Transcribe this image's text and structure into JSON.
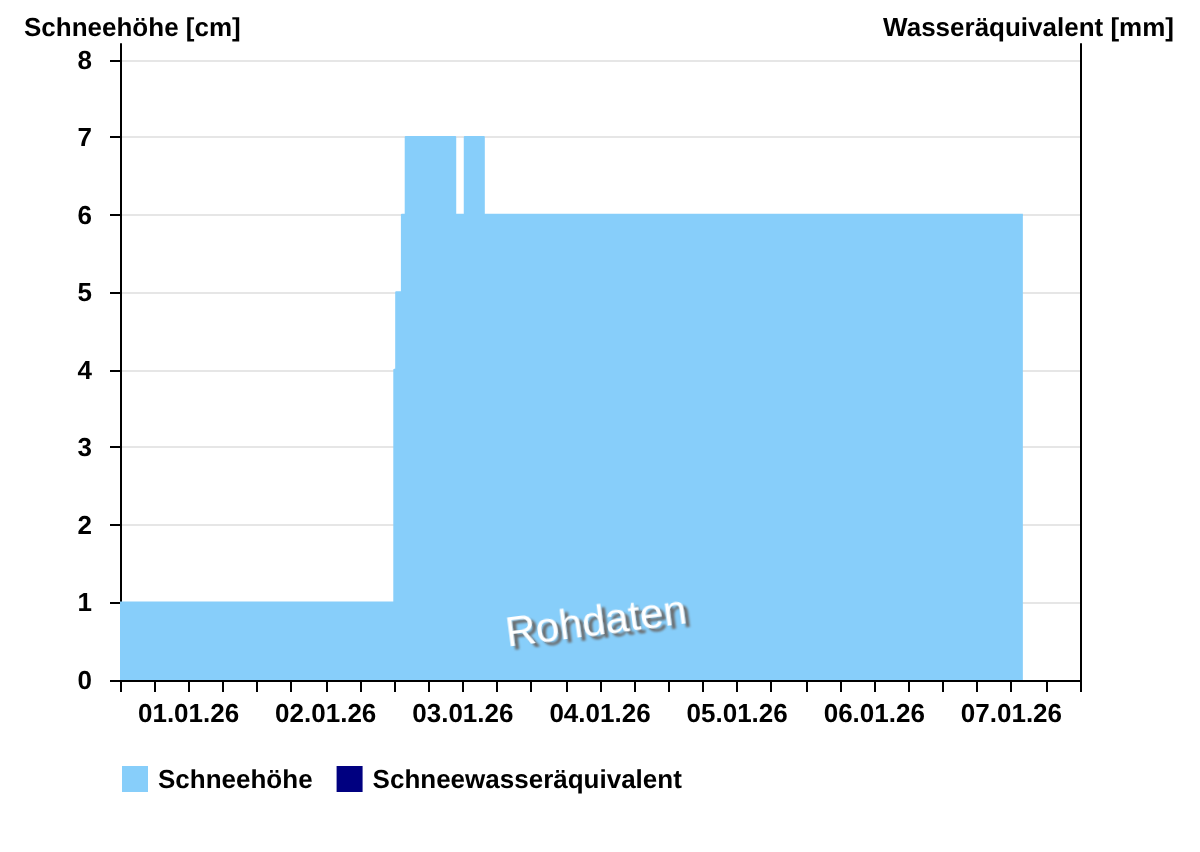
{
  "chart_data": {
    "type": "area",
    "ylabel": "Schneehöhe [cm]",
    "y2label": "Wasseräquivalent [mm]",
    "annotations": [
      "Rohdaten"
    ],
    "x": [
      "--01-01T00:00",
      "--01-03T00:00",
      "--01-03T00:00",
      "--01-03T00:20",
      "--01-03T00:20",
      "--01-03T01:20",
      "--01-03T01:20",
      "--01-03T02:00",
      "--01-03T02:00",
      "--01-03T10:40",
      "--01-03T10:40",
      "--01-03T12:20",
      "--01-03T12:20",
      "--01-03T15:40",
      "--01-03T15:40",
      "--01-07T14:00"
    ],
    "series": [
      {
        "name": "Schneehöhe",
        "color": "#87cefa",
        "values": [
          1,
          1,
          4,
          4,
          5,
          5,
          6,
          6,
          7,
          7,
          6,
          6,
          7,
          7,
          6,
          6
        ]
      },
      {
        "name": "Schneewasseräquivalent",
        "color": "#000080",
        "axis": "y2",
        "values": [
          null,
          null,
          null,
          null,
          null,
          null,
          null,
          null,
          null,
          null,
          null,
          null,
          null,
          null,
          null,
          null
        ]
      }
    ],
    "xlim": [
      "--01-01T00:00",
      "--01-08T00:00"
    ],
    "xticks": [
      {
        "value": "--01-01T00:00",
        "label": null
      },
      {
        "value": "--01-01T06:00",
        "label": null
      },
      {
        "value": "--01-01T12:00",
        "label": "01.01.26"
      },
      {
        "value": "--01-01T18:00",
        "label": null
      },
      {
        "value": "--01-02T00:00",
        "label": null
      },
      {
        "value": "--01-02T06:00",
        "label": null
      },
      {
        "value": "--01-02T12:00",
        "label": "02.01.26"
      },
      {
        "value": "--01-02T18:00",
        "label": null
      },
      {
        "value": "--01-03T00:00",
        "label": null
      },
      {
        "value": "--01-03T06:00",
        "label": null
      },
      {
        "value": "--01-03T12:00",
        "label": "03.01.26"
      },
      {
        "value": "--01-03T18:00",
        "label": null
      },
      {
        "value": "--01-04T00:00",
        "label": null
      },
      {
        "value": "--01-04T06:00",
        "label": null
      },
      {
        "value": "--01-04T12:00",
        "label": "04.01.26"
      },
      {
        "value": "--01-04T18:00",
        "label": null
      },
      {
        "value": "--01-05T00:00",
        "label": null
      },
      {
        "value": "--01-05T06:00",
        "label": null
      },
      {
        "value": "--01-05T12:00",
        "label": "05.01.26"
      },
      {
        "value": "--01-05T18:00",
        "label": null
      },
      {
        "value": "--01-06T00:00",
        "label": null
      },
      {
        "value": "--01-06T06:00",
        "label": null
      },
      {
        "value": "--01-06T12:00",
        "label": "06.01.26"
      },
      {
        "value": "--01-06T18:00",
        "label": null
      },
      {
        "value": "--01-07T00:00",
        "label": null
      },
      {
        "value": "--01-07T06:00",
        "label": null
      },
      {
        "value": "--01-07T12:00",
        "label": "07.01.26"
      },
      {
        "value": "--01-07T18:00",
        "label": null
      },
      {
        "value": "--01-08T00:00",
        "label": null
      }
    ],
    "ylim": [
      0,
      8.2
    ],
    "yticks": [
      0,
      1,
      2,
      3,
      4,
      5,
      6,
      7,
      8
    ],
    "grid": "y",
    "legend": "bottom left"
  }
}
